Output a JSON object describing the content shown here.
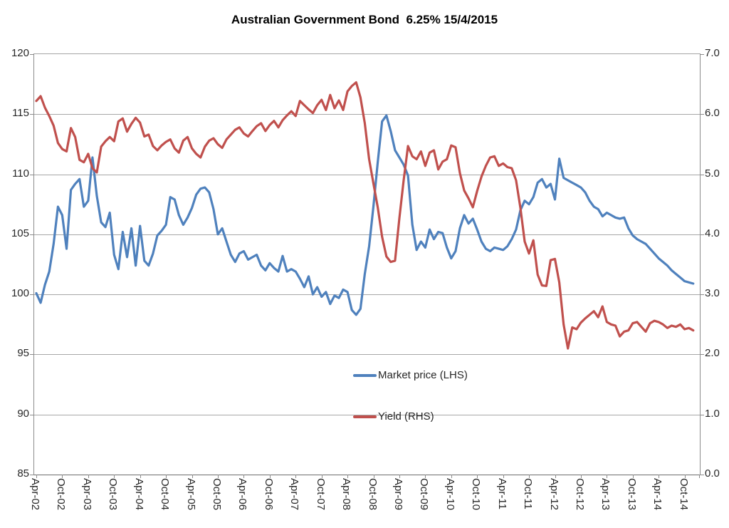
{
  "title": "Australian Government Bond  6.25% 15/4/2015",
  "chart_data": {
    "type": "line",
    "title": "Australian Government Bond  6.25% 15/4/2015",
    "grid": true,
    "x_start": "Apr-02",
    "x_end": "Dec-14",
    "x_frequency": "monthly",
    "x_tick_labels": [
      "Apr-02",
      "Oct-02",
      "Apr-03",
      "Oct-03",
      "Apr-04",
      "Oct-04",
      "Apr-05",
      "Oct-05",
      "Apr-06",
      "Oct-06",
      "Apr-07",
      "Oct-07",
      "Apr-08",
      "Oct-08",
      "Apr-09",
      "Oct-09",
      "Apr-10",
      "Oct-10",
      "Apr-11",
      "Oct-11",
      "Apr-12",
      "Oct-12",
      "Apr-13",
      "Oct-13",
      "Apr-14",
      "Oct-14"
    ],
    "left_axis": {
      "label": "Market price",
      "min": 85,
      "max": 120,
      "step": 5,
      "ticks": [
        "120",
        "115",
        "110",
        "105",
        "100",
        "95",
        "90",
        "85"
      ]
    },
    "right_axis": {
      "label": "Yield",
      "min": 0.0,
      "max": 7.0,
      "step": 1.0,
      "ticks": [
        "7.0",
        "6.0",
        "5.0",
        "4.0",
        "3.0",
        "2.0",
        "1.0",
        "0.0"
      ]
    },
    "legend_position": "floating-center",
    "series": [
      {
        "name": "Market price (LHS)",
        "axis": "left",
        "color": "#4F81BD",
        "values": [
          100.1,
          99.3,
          100.8,
          101.9,
          104.2,
          107.3,
          106.6,
          103.8,
          108.7,
          109.2,
          109.6,
          107.3,
          107.8,
          111.4,
          108.2,
          106.0,
          105.6,
          106.8,
          103.3,
          102.1,
          105.2,
          103.1,
          105.5,
          102.4,
          105.7,
          102.8,
          102.4,
          103.4,
          104.9,
          105.3,
          105.8,
          108.1,
          107.9,
          106.6,
          105.8,
          106.4,
          107.2,
          108.3,
          108.8,
          108.9,
          108.5,
          107.1,
          105.0,
          105.5,
          104.4,
          103.3,
          102.7,
          103.4,
          103.6,
          102.9,
          103.1,
          103.3,
          102.4,
          102.0,
          102.6,
          102.2,
          101.9,
          103.2,
          101.9,
          102.1,
          101.9,
          101.3,
          100.6,
          101.5,
          100.0,
          100.6,
          99.8,
          100.2,
          99.2,
          99.9,
          99.7,
          100.4,
          100.2,
          98.7,
          98.3,
          98.8,
          101.7,
          104.0,
          107.3,
          111.0,
          114.4,
          114.9,
          113.6,
          112.0,
          111.4,
          110.8,
          109.9,
          105.8,
          103.7,
          104.4,
          103.9,
          105.4,
          104.6,
          105.2,
          105.1,
          103.9,
          103.0,
          103.6,
          105.5,
          106.6,
          105.9,
          106.3,
          105.4,
          104.4,
          103.8,
          103.6,
          103.9,
          103.8,
          103.7,
          104.0,
          104.6,
          105.4,
          107.0,
          107.8,
          107.5,
          108.1,
          109.3,
          109.6,
          108.9,
          109.2,
          107.9,
          111.3,
          109.7,
          109.5,
          109.3,
          109.1,
          108.9,
          108.5,
          107.8,
          107.3,
          107.1,
          106.5,
          106.8,
          106.6,
          106.4,
          106.3,
          106.4,
          105.5,
          104.9,
          104.6,
          104.4,
          104.2,
          103.8,
          103.4,
          103.0,
          102.7,
          102.4,
          102.0,
          101.7,
          101.4,
          101.1,
          101.0,
          100.9
        ]
      },
      {
        "name": "Yield (RHS)",
        "axis": "right",
        "color": "#C0504D",
        "values": [
          6.22,
          6.3,
          6.11,
          5.97,
          5.81,
          5.52,
          5.42,
          5.38,
          5.77,
          5.62,
          5.24,
          5.2,
          5.34,
          5.1,
          5.03,
          5.46,
          5.55,
          5.62,
          5.55,
          5.88,
          5.93,
          5.71,
          5.84,
          5.94,
          5.86,
          5.63,
          5.66,
          5.47,
          5.4,
          5.48,
          5.54,
          5.58,
          5.43,
          5.36,
          5.56,
          5.62,
          5.43,
          5.34,
          5.28,
          5.46,
          5.56,
          5.6,
          5.5,
          5.44,
          5.58,
          5.66,
          5.74,
          5.78,
          5.68,
          5.63,
          5.72,
          5.8,
          5.85,
          5.72,
          5.82,
          5.89,
          5.78,
          5.9,
          5.98,
          6.05,
          5.97,
          6.22,
          6.15,
          6.08,
          6.02,
          6.15,
          6.24,
          6.07,
          6.32,
          6.1,
          6.23,
          6.07,
          6.38,
          6.47,
          6.53,
          6.28,
          5.85,
          5.25,
          4.85,
          4.45,
          3.96,
          3.63,
          3.54,
          3.56,
          4.27,
          4.9,
          5.47,
          5.3,
          5.25,
          5.38,
          5.14,
          5.36,
          5.4,
          5.08,
          5.21,
          5.25,
          5.48,
          5.45,
          5.02,
          4.73,
          4.6,
          4.45,
          4.72,
          4.96,
          5.14,
          5.28,
          5.3,
          5.14,
          5.18,
          5.12,
          5.1,
          4.9,
          4.44,
          3.88,
          3.68,
          3.9,
          3.33,
          3.15,
          3.14,
          3.57,
          3.59,
          3.2,
          2.5,
          2.1,
          2.45,
          2.42,
          2.53,
          2.6,
          2.66,
          2.72,
          2.62,
          2.8,
          2.54,
          2.5,
          2.48,
          2.3,
          2.38,
          2.4,
          2.52,
          2.54,
          2.46,
          2.38,
          2.52,
          2.56,
          2.54,
          2.5,
          2.44,
          2.48,
          2.46,
          2.5,
          2.42,
          2.44,
          2.4
        ]
      }
    ]
  }
}
